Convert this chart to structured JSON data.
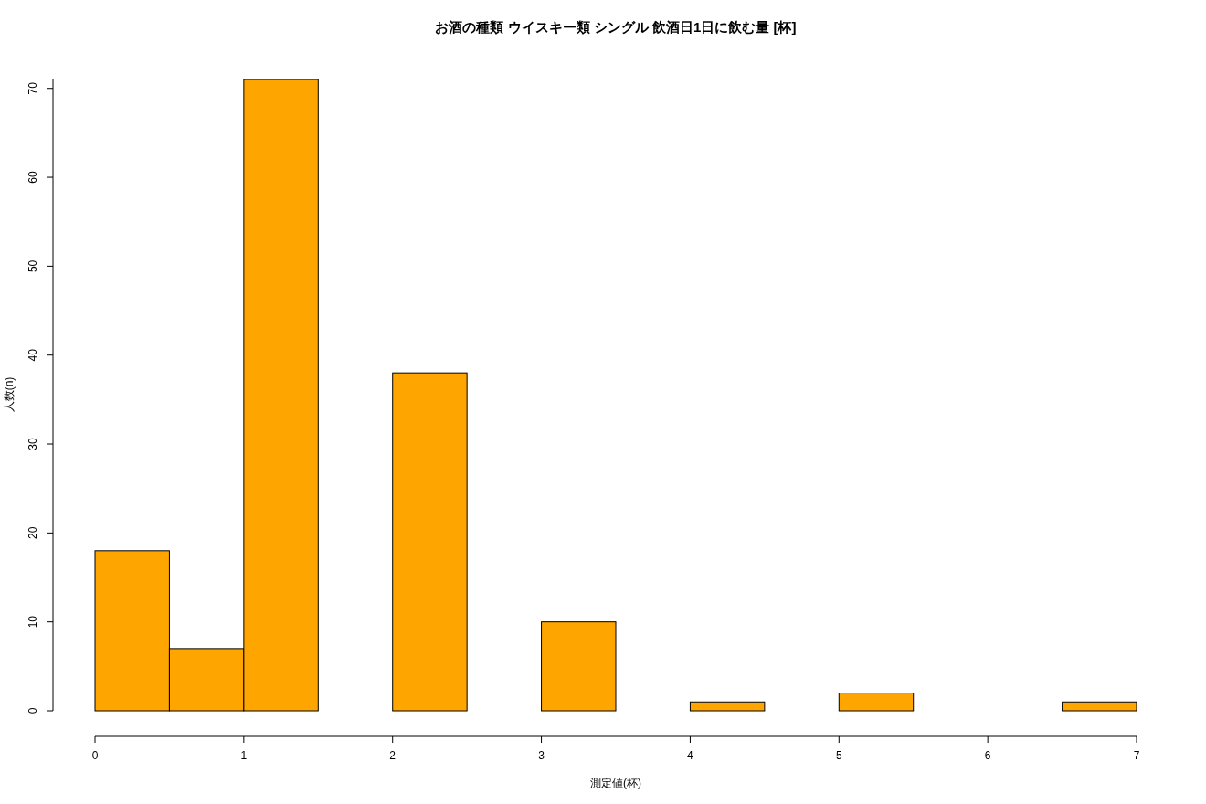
{
  "chart_data": {
    "type": "histogram",
    "title": "お酒の種類 ウイスキー類 シングル 飲酒日1日に飲む量 [杯]",
    "xlabel": "測定値(杯)",
    "ylabel": "人数(n)",
    "color": "#ffa500",
    "bins": [
      0,
      0.5,
      1,
      1.5,
      2,
      2.5,
      3,
      3.5,
      4,
      4.5,
      5,
      5.5,
      6,
      6.5,
      7
    ],
    "values": [
      18,
      7,
      71,
      0,
      38,
      0,
      10,
      0,
      1,
      0,
      2,
      0,
      0,
      1
    ],
    "xlim": [
      0,
      7
    ],
    "ylim": [
      0,
      71
    ],
    "xticks": [
      0,
      1,
      2,
      3,
      4,
      5,
      6,
      7
    ],
    "yticks": [
      0,
      10,
      20,
      30,
      40,
      50,
      60,
      70
    ]
  }
}
